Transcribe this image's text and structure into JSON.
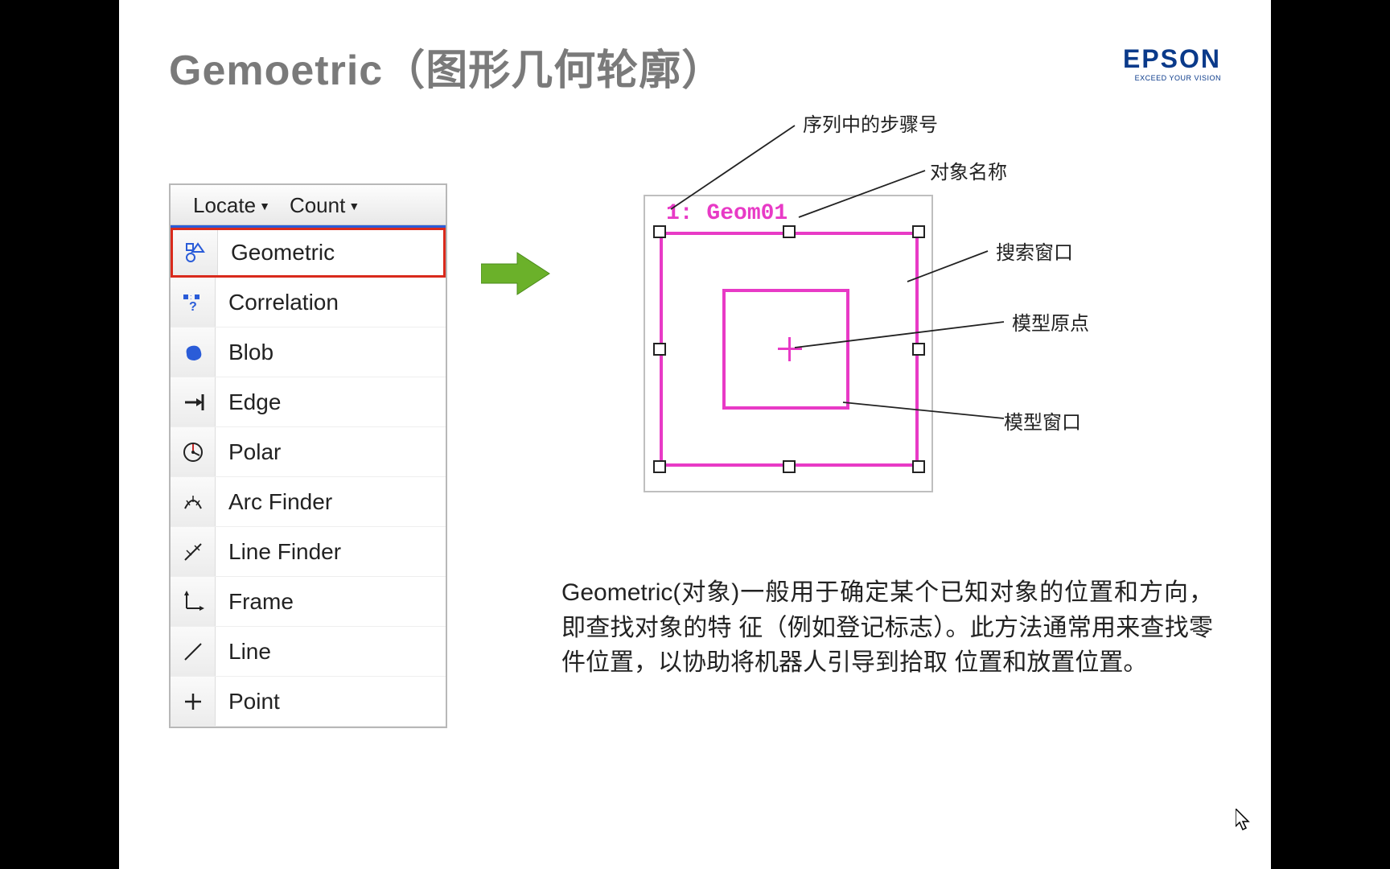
{
  "title": "Gemoetric（图形几何轮廓）",
  "logo": {
    "brand": "EPSON",
    "tagline": "EXCEED YOUR VISION"
  },
  "menubar": {
    "locate": "Locate",
    "count": "Count"
  },
  "menu_items": [
    {
      "label": "Geometric",
      "icon": "geometric",
      "highlight": true
    },
    {
      "label": "Correlation",
      "icon": "correlation",
      "highlight": false
    },
    {
      "label": "Blob",
      "icon": "blob",
      "highlight": false
    },
    {
      "label": "Edge",
      "icon": "edge",
      "highlight": false
    },
    {
      "label": "Polar",
      "icon": "polar",
      "highlight": false
    },
    {
      "label": "Arc Finder",
      "icon": "arcfinder",
      "highlight": false
    },
    {
      "label": "Line Finder",
      "icon": "linefinder",
      "highlight": false
    },
    {
      "label": "Frame",
      "icon": "frame",
      "highlight": false
    },
    {
      "label": "Line",
      "icon": "line",
      "highlight": false
    },
    {
      "label": "Point",
      "icon": "point",
      "highlight": false
    }
  ],
  "diagram": {
    "object_label": "1: Geom01",
    "annotations": {
      "step_number": "序列中的步骤号",
      "object_name": "对象名称",
      "search_window": "搜索窗口",
      "model_origin": "模型原点",
      "model_window": "模型窗口"
    }
  },
  "body": "Geometric(对象)一般用于确定某个已知对象的位置和方向，即查找对象的特 征（例如登记标志）。此方法通常用来查找零件位置，以协助将机器人引导到拾取 位置和放置位置。",
  "colors": {
    "title_gray": "#7a7a7a",
    "epson_blue": "#0a3a8a",
    "highlight_red": "#d92a1c",
    "magenta": "#e83ac6",
    "arrow_green": "#6bb12a"
  }
}
